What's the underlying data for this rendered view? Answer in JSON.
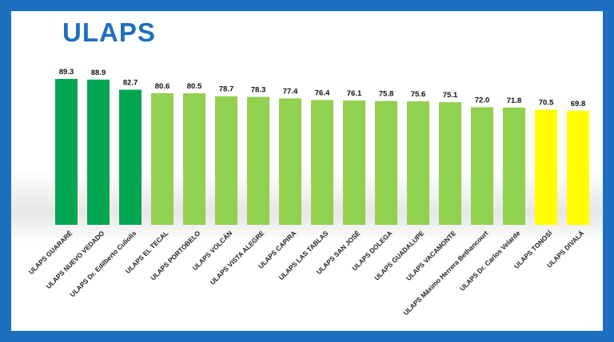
{
  "chart_data": {
    "type": "bar",
    "title": "ULAPS",
    "xlabel": "",
    "ylabel": "",
    "ylim": [
      0,
      100
    ],
    "grid": false,
    "categories": [
      "ULAPS GUARARÉ",
      "ULAPS NUEVO VEDADO",
      "ULAPS Dr. Edilberto Culiolis",
      "ULAPS EL TECAL",
      "ULAPS PORTOBELO",
      "ULAPS VOLCÁN",
      "ULAPS VISTA ALEGRE",
      "ULAPS CAPIRA",
      "ULAPS LAS TABLAS",
      "ULAPS SAN JOSÉ",
      "ULAPS DOLEGA",
      "ULAPS GUADALUPE",
      "ULAPS VACAMONTE",
      "ULAPS Máximo Herrera Bethancourt",
      "ULAPS Dr. Carlos Velarde",
      "ULAPS TONOSÍ",
      "ULAPS DIVALÁ"
    ],
    "values": [
      89.3,
      88.9,
      82.7,
      80.6,
      80.5,
      78.7,
      78.3,
      77.4,
      76.4,
      76.1,
      75.8,
      75.6,
      75.1,
      72.0,
      71.8,
      70.5,
      69.8
    ],
    "value_labels": [
      "89.3",
      "88.9",
      "82.7",
      "80.6",
      "80.5",
      "78.7",
      "78.3",
      "77.4",
      "76.4",
      "76.1",
      "75.8",
      "75.6",
      "75.1",
      "72.0",
      "71.8",
      "70.5",
      "69.8"
    ],
    "bar_colors": [
      "#00a651",
      "#00a651",
      "#00a651",
      "#92d050",
      "#92d050",
      "#92d050",
      "#92d050",
      "#92d050",
      "#92d050",
      "#92d050",
      "#92d050",
      "#92d050",
      "#92d050",
      "#92d050",
      "#92d050",
      "#ffff00",
      "#ffff00"
    ]
  },
  "colors": {
    "title": "#1f6fc0",
    "border": "#1f6fc0"
  }
}
